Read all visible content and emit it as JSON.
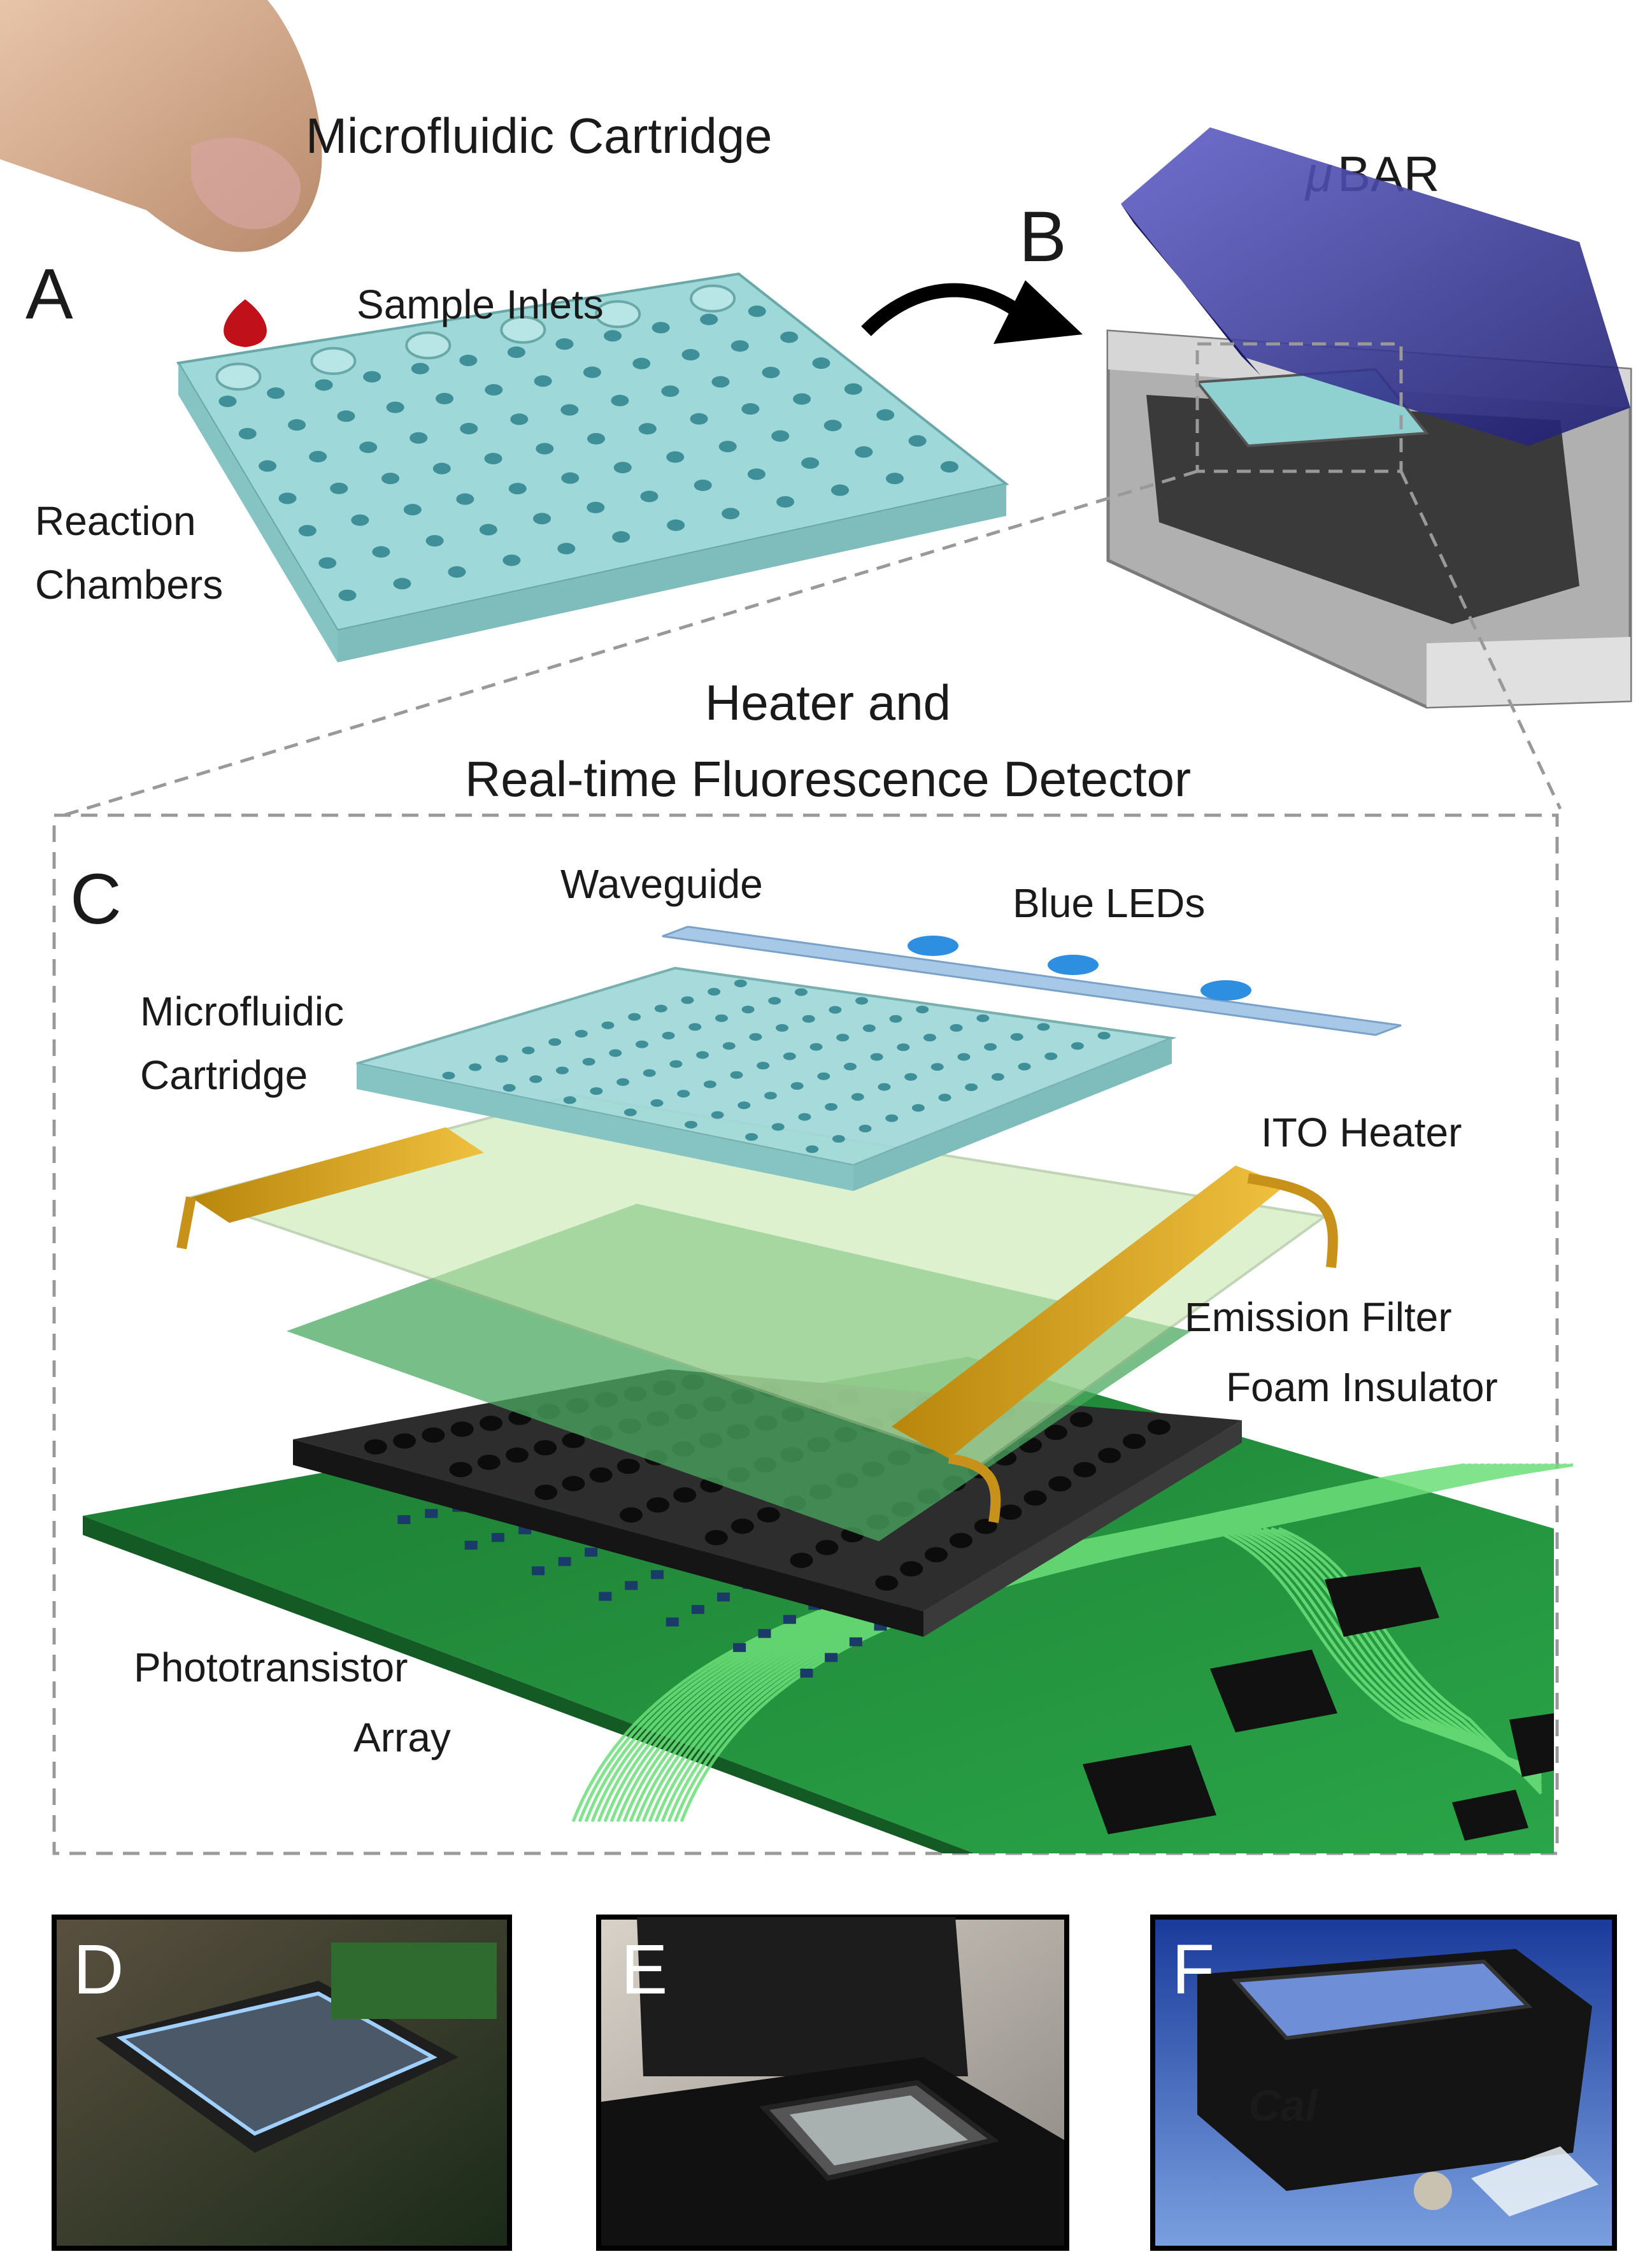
{
  "panels": {
    "A": {
      "letter": "A",
      "title": "Microfluidic Cartridge",
      "inlets_label": "Sample Inlets",
      "chambers_label_1": "Reaction",
      "chambers_label_2": "Chambers"
    },
    "B": {
      "letter": "B",
      "device_mu": "μ",
      "device_name": "BAR"
    },
    "C": {
      "letter": "C",
      "heading_1": "Heater and",
      "heading_2": "Real-time Fluorescence Detector",
      "waveguide": "Waveguide",
      "leds": "Blue LEDs",
      "cartridge_1": "Microfluidic",
      "cartridge_2": "Cartridge",
      "ito": "ITO Heater",
      "emission": "Emission Filter",
      "foam": "Foam Insulator",
      "photo_1": "Phototransistor",
      "photo_2": "Array"
    },
    "D": {
      "letter": "D"
    },
    "E": {
      "letter": "E"
    },
    "F": {
      "letter": "F",
      "logo_text": "Cal"
    }
  },
  "colors": {
    "cartridge": "#9ed8d8",
    "lid": "#3a3aa0",
    "pcb": "#1f8a3a",
    "gold": "#d4a21a",
    "filter": "#4aa860",
    "foam": "#2a2a2a",
    "led": "#2e8fe0",
    "blood": "#c0101a"
  }
}
